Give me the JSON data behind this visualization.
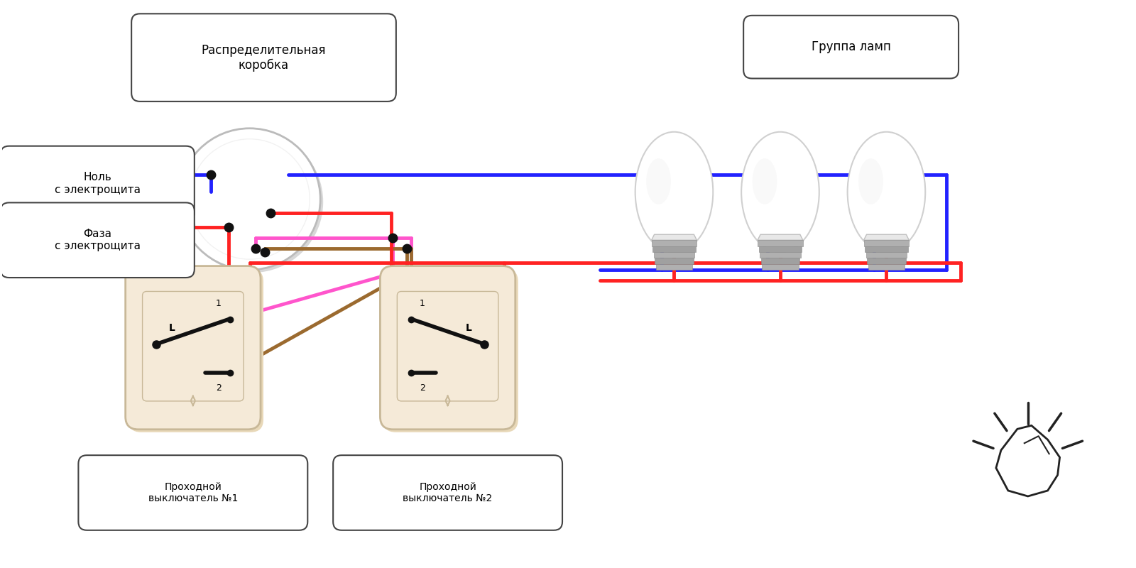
{
  "bg_color": "#ffffff",
  "labels": {
    "distribution_box": "Распределительная\nкоробка",
    "group_lamps": "Группа ламп",
    "null_label": "Ноль\nс электрощита",
    "phase_label": "Фаза\nс электрощита",
    "switch1": "Проходной\nвыключатель №1",
    "switch2": "Проходной\nвыключатель №2"
  },
  "colors": {
    "blue": "#2222ff",
    "red": "#ff2222",
    "pink": "#ff55cc",
    "brown": "#9b6a2f",
    "black": "#111111",
    "white": "#ffffff",
    "cream": "#f5ead8",
    "cream_shadow": "#e8d8b8",
    "cream_dark": "#c8b898",
    "gray": "#bbbbbb",
    "light_gray": "#f2f2f2",
    "mid_gray": "#d8d8d8",
    "junction": "#111111",
    "box_outline": "#444444",
    "silver": "#aaaaaa"
  },
  "lw": 3.5,
  "lw_thick": 4.0,
  "figsize": [
    16,
    8
  ]
}
